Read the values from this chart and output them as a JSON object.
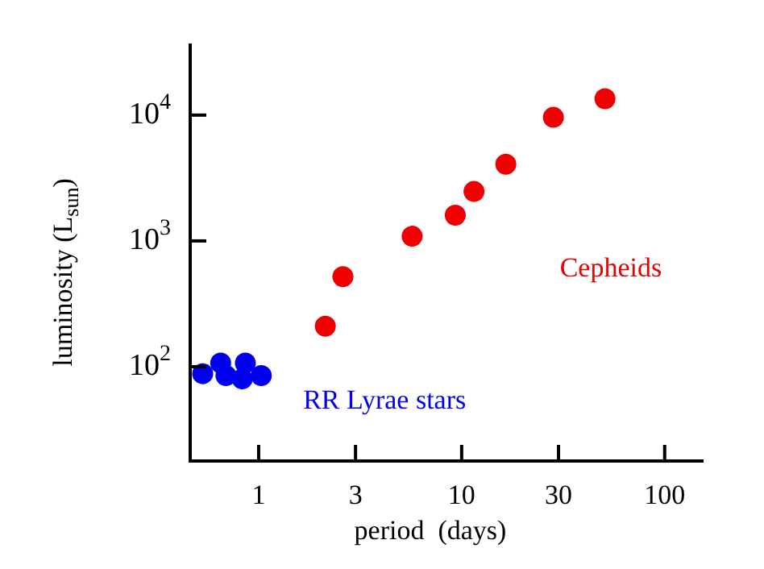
{
  "chart_data": {
    "type": "scatter",
    "xlabel": "period  (days)",
    "ylabel": "luminosity (L$_{sun}$)",
    "log": "xy",
    "grid": false,
    "legend": false,
    "marker": "circle",
    "xlim": [
      0.46,
      154
    ],
    "ylim": [
      17.8,
      36000
    ],
    "xticks": [
      1,
      3,
      10,
      30,
      100
    ],
    "yticks": [
      {
        "value": 100,
        "label": "10$^{2}$"
      },
      {
        "value": 1000,
        "label": "10$^{3}$"
      },
      {
        "value": 10000,
        "label": "10$^{4}$"
      }
    ],
    "series": [
      {
        "name": "RR Lyrae stars",
        "color": "#0000ee",
        "x": [
          0.53,
          0.65,
          0.69,
          0.83,
          0.86,
          1.03
        ],
        "values": [
          88,
          107,
          85,
          80,
          107,
          85
        ]
      },
      {
        "name": "Cepheids",
        "color": "#ee0000",
        "x": [
          2.13,
          2.6,
          5.7,
          9.3,
          11.5,
          16.5,
          28.3,
          50.8
        ],
        "values": [
          210,
          520,
          1090,
          1600,
          2470,
          4070,
          9600,
          13500
        ]
      }
    ]
  }
}
